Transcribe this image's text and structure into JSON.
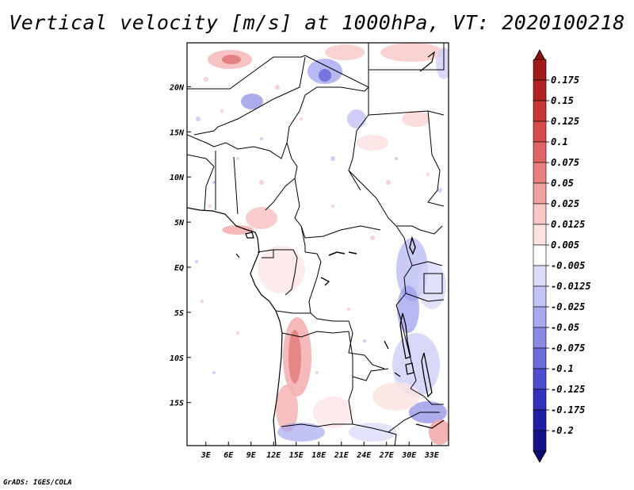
{
  "title": "Vertical velocity [m/s] at 1000hPa, VT: 2020100218",
  "credit": "GrADS: IGES/COLA",
  "map": {
    "lat_labels": [
      "20N",
      "15N",
      "10N",
      "5N",
      "EQ",
      "5S",
      "10S",
      "15S"
    ],
    "lat_values": [
      20,
      15,
      10,
      5,
      0,
      -5,
      -10,
      -15
    ],
    "lon_labels": [
      "3E",
      "6E",
      "9E",
      "12E",
      "15E",
      "18E",
      "21E",
      "24E",
      "27E",
      "30E",
      "33E"
    ],
    "lon_values": [
      3,
      6,
      9,
      12,
      15,
      18,
      21,
      24,
      27,
      30,
      33
    ]
  },
  "colorbar": {
    "labels": [
      "0.175",
      "0.15",
      "0.125",
      "0.1",
      "0.075",
      "0.05",
      "0.025",
      "0.0125",
      "0.005",
      "-0.005",
      "-0.0125",
      "-0.025",
      "-0.05",
      "-0.075",
      "-0.1",
      "-0.125",
      "-0.175",
      "-0.2"
    ],
    "colors": [
      "#a11b1b",
      "#b22222",
      "#c93434",
      "#d84b4b",
      "#e06464",
      "#e88080",
      "#f0a0a0",
      "#f7c7c7",
      "#fde2e2",
      "#ffffff",
      "#dcdcfa",
      "#c3c3f5",
      "#a8a8ef",
      "#8a8ae6",
      "#6b6bdc",
      "#4d4dcf",
      "#3232bf",
      "#1e1ea8",
      "#12128a"
    ],
    "top_color": "#8b1010",
    "bottom_color": "#0a0a70"
  }
}
